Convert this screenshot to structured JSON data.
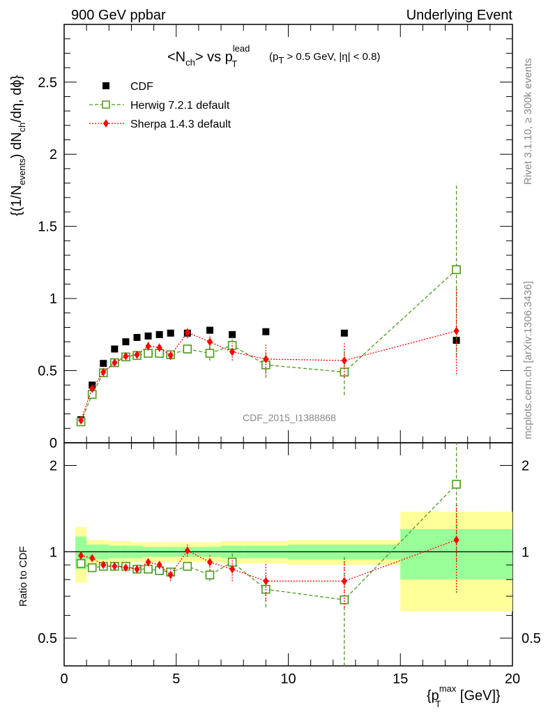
{
  "header": {
    "left_title": "900 GeV ppbar",
    "right_title": "Underlying Event"
  },
  "plot_title": {
    "main": "<N",
    "main_sub": "ch",
    "main_rest": "> vs p",
    "main_sup": "lead",
    "main_sub2": "T",
    "cond_a": "(p",
    "cond_sub": "T",
    "cond_rest": " > 0.5 GeV, |η| < 0.8)"
  },
  "side_labels": {
    "rivet": "Rivet 3.1.10, ≥ 300k events",
    "mcplots": "mcplots.cern.ch [arXiv:1306.3436]"
  },
  "watermark": "CDF_2015_I1388868",
  "legend": {
    "cdf": "CDF",
    "herwig": "Herwig 7.2.1 default",
    "sherpa": "Sherpa 1.4.3 default"
  },
  "axes": {
    "y_main_label": "{(1/N",
    "y_main_sub1": "events",
    "y_main_mid": ") dN",
    "y_main_sub2": "ch",
    "y_main_end": "/dη, dϕ}",
    "y_ratio_label": "Ratio to CDF",
    "x_label_a": "{p",
    "x_label_sup": "max",
    "x_label_sub": "T",
    "x_label_b": " [GeV]}",
    "x_ticks": [
      "0",
      "5",
      "10",
      "15",
      "20"
    ],
    "y_main_ticks": [
      "0",
      "0.5",
      "1",
      "1.5",
      "2",
      "2.5"
    ],
    "y_ratio_ticks_left": [
      "0.5",
      "1",
      "2"
    ],
    "y_ratio_ticks_right": [
      "0.5",
      "1",
      "2"
    ]
  },
  "colors": {
    "cdf": "#000000",
    "herwig": "#4a9a1a",
    "sherpa": "#ff0000",
    "band_inner": "#99ff99",
    "band_outer": "#ffff99"
  },
  "chart_data": [
    {
      "type": "scatter",
      "title": "<Nch> vs pT lead (pT > 0.5 GeV, |η| < 0.8)",
      "xlabel": "{pT max [GeV]}",
      "ylabel": "{(1/Nevents) dNch/dη, dϕ}",
      "xlim": [
        0,
        20
      ],
      "ylim": [
        0,
        2.9
      ],
      "series": [
        {
          "name": "CDF",
          "x": [
            0.75,
            1.25,
            1.75,
            2.25,
            2.75,
            3.25,
            3.75,
            4.25,
            4.75,
            5.5,
            6.5,
            7.5,
            9.0,
            12.5,
            17.5
          ],
          "y": [
            0.16,
            0.4,
            0.55,
            0.65,
            0.7,
            0.73,
            0.74,
            0.75,
            0.76,
            0.76,
            0.78,
            0.75,
            0.77,
            0.76,
            0.71
          ],
          "xerr": [
            0.25,
            0.25,
            0.25,
            0.25,
            0.25,
            0.25,
            0.25,
            0.25,
            0.25,
            0.5,
            0.5,
            0.5,
            1.0,
            2.5,
            2.5
          ]
        },
        {
          "name": "Herwig 7.2.1 default",
          "x": [
            0.75,
            1.25,
            1.75,
            2.25,
            2.75,
            3.25,
            3.75,
            4.25,
            4.75,
            5.5,
            6.5,
            7.5,
            9.0,
            12.5,
            17.5
          ],
          "y": [
            0.145,
            0.335,
            0.485,
            0.555,
            0.595,
            0.605,
            0.62,
            0.62,
            0.61,
            0.65,
            0.62,
            0.675,
            0.54,
            0.49,
            1.2
          ],
          "yerr": [
            0.01,
            0.02,
            0.02,
            0.02,
            0.02,
            0.02,
            0.03,
            0.03,
            0.03,
            0.03,
            0.05,
            0.06,
            0.09,
            0.16,
            0.6
          ]
        },
        {
          "name": "Sherpa 1.4.3 default",
          "x": [
            0.75,
            1.25,
            1.75,
            2.25,
            2.75,
            3.25,
            3.75,
            4.25,
            4.75,
            5.5,
            6.5,
            7.5,
            9.0,
            12.5,
            17.5
          ],
          "y": [
            0.155,
            0.375,
            0.49,
            0.555,
            0.6,
            0.61,
            0.67,
            0.66,
            0.605,
            0.765,
            0.7,
            0.63,
            0.58,
            0.57,
            0.775
          ],
          "yerr": [
            0.01,
            0.02,
            0.02,
            0.02,
            0.02,
            0.02,
            0.03,
            0.03,
            0.03,
            0.04,
            0.05,
            0.06,
            0.1,
            0.12,
            0.3
          ]
        }
      ]
    },
    {
      "type": "scatter",
      "ylabel": "Ratio to CDF",
      "xlabel": "{pT max [GeV]}",
      "xlim": [
        0,
        20
      ],
      "ylim": [
        0.4,
        2.4
      ],
      "yscale": "log",
      "bands": {
        "x_edges": [
          0.5,
          1.0,
          1.5,
          2.0,
          2.5,
          3.0,
          3.5,
          4.0,
          4.5,
          5.0,
          6.0,
          7.0,
          8.0,
          10.0,
          15.0,
          20.0
        ],
        "inner_halfwidth": [
          0.13,
          0.06,
          0.06,
          0.05,
          0.05,
          0.05,
          0.04,
          0.04,
          0.04,
          0.04,
          0.04,
          0.05,
          0.05,
          0.06,
          0.2
        ],
        "outer_halfwidth": [
          0.22,
          0.1,
          0.1,
          0.09,
          0.09,
          0.08,
          0.08,
          0.08,
          0.08,
          0.08,
          0.08,
          0.09,
          0.09,
          0.1,
          0.38
        ]
      },
      "series": [
        {
          "name": "Herwig 7.2.1 default",
          "x": [
            0.75,
            1.25,
            1.75,
            2.25,
            2.75,
            3.25,
            3.75,
            4.25,
            4.75,
            5.5,
            6.5,
            7.5,
            9.0,
            12.5,
            17.5
          ],
          "y": [
            0.91,
            0.88,
            0.89,
            0.89,
            0.89,
            0.87,
            0.87,
            0.86,
            0.85,
            0.89,
            0.83,
            0.92,
            0.74,
            0.68,
            1.72
          ],
          "yerr": [
            0.02,
            0.02,
            0.02,
            0.02,
            0.02,
            0.02,
            0.02,
            0.02,
            0.03,
            0.03,
            0.04,
            0.08,
            0.1,
            0.28,
            0.8
          ]
        },
        {
          "name": "Sherpa 1.4.3 default",
          "x": [
            0.75,
            1.25,
            1.75,
            2.25,
            2.75,
            3.25,
            3.75,
            4.25,
            4.75,
            5.5,
            6.5,
            7.5,
            9.0,
            12.5,
            17.5
          ],
          "y": [
            0.97,
            0.95,
            0.9,
            0.89,
            0.88,
            0.87,
            0.92,
            0.9,
            0.83,
            1.01,
            0.92,
            0.87,
            0.79,
            0.79,
            1.1
          ],
          "yerr": [
            0.02,
            0.02,
            0.02,
            0.02,
            0.02,
            0.02,
            0.03,
            0.03,
            0.04,
            0.05,
            0.06,
            0.08,
            0.12,
            0.15,
            0.38
          ]
        }
      ]
    }
  ]
}
